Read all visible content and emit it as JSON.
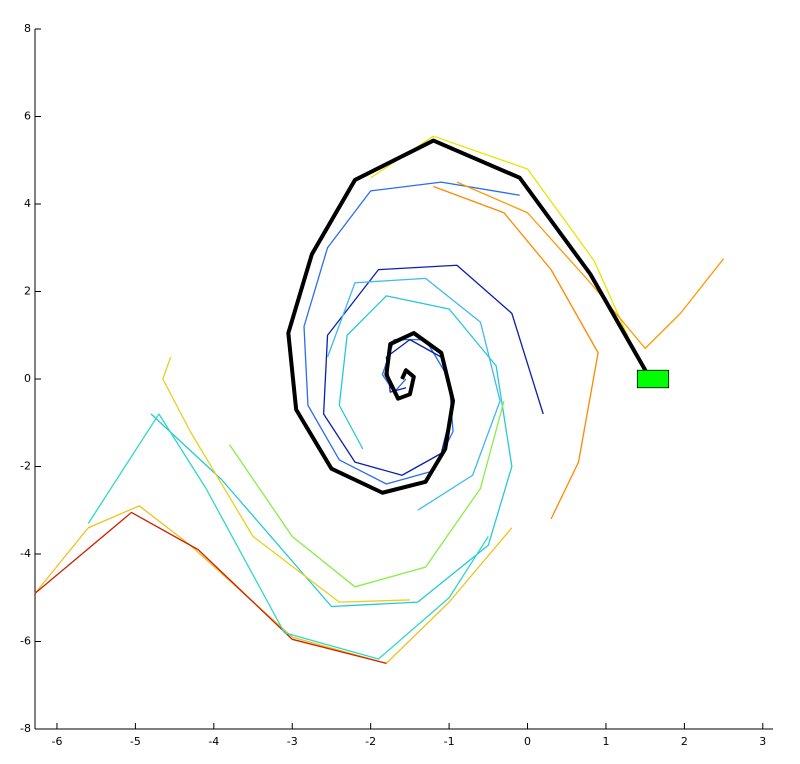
{
  "chart_data": {
    "type": "line",
    "xlim": [
      -6.28,
      3.13
    ],
    "ylim": [
      -8,
      8
    ],
    "xticks": [
      -6,
      -5,
      -4,
      -3,
      -2,
      -1,
      0,
      1,
      2,
      3
    ],
    "yticks": [
      -8,
      -6,
      -4,
      -2,
      0,
      2,
      4,
      6,
      8
    ],
    "target": {
      "x": [
        1.4,
        1.8
      ],
      "y": [
        -0.2,
        0.2
      ],
      "color": "#00ff00"
    },
    "series": [
      {
        "color": "#e6e600",
        "width": 1.3,
        "x": [
          1.5,
          0.85,
          0.0,
          -1.2,
          -2.0
        ],
        "values": [
          0.1,
          2.7,
          4.8,
          5.55,
          4.6
        ]
      },
      {
        "color": "#2a6cf0",
        "width": 1.3,
        "x": [
          -0.1,
          -1.1,
          -2.0,
          -2.55,
          -2.85,
          -2.8,
          -2.4,
          -1.8,
          -1.2,
          -0.95,
          -1.0,
          -1.3,
          -1.7,
          -1.85,
          -1.7,
          -1.55
        ],
        "values": [
          4.2,
          4.5,
          4.3,
          3.0,
          1.2,
          -0.6,
          -1.85,
          -2.4,
          -2.1,
          -1.2,
          0.0,
          0.9,
          0.9,
          0.1,
          -0.3,
          0.0
        ]
      },
      {
        "color": "#0a1fb0",
        "width": 1.3,
        "x": [
          0.2,
          -0.2,
          -0.9,
          -1.9,
          -2.55,
          -2.6,
          -2.2,
          -1.6,
          -1.1,
          -0.95,
          -1.1,
          -1.5,
          -1.8,
          -1.75,
          -1.55
        ],
        "values": [
          -0.8,
          1.5,
          2.6,
          2.5,
          1.0,
          -0.8,
          -1.9,
          -2.2,
          -1.7,
          -0.6,
          0.5,
          0.9,
          0.5,
          -0.3,
          -0.2
        ]
      },
      {
        "color": "#26c8d8",
        "width": 1.3,
        "x": [
          -4.8,
          -3.9,
          -2.5,
          -1.4,
          -0.5,
          -0.2,
          -0.4,
          -1.0,
          -1.8,
          -2.3,
          -2.4,
          -2.1
        ],
        "values": [
          -0.8,
          -2.3,
          -5.2,
          -5.1,
          -3.8,
          -2.0,
          0.3,
          1.6,
          1.9,
          1.0,
          -0.6,
          -1.6
        ]
      },
      {
        "color": "#f0c020",
        "width": 1.3,
        "x": [
          -6.28,
          -5.6,
          -4.95,
          -4.3,
          -3.0,
          -1.8,
          -1.0,
          -0.2
        ],
        "values": [
          -4.9,
          -3.4,
          -2.9,
          -3.8,
          -5.9,
          -6.5,
          -5.1,
          -3.4
        ]
      },
      {
        "color": "#e8d020",
        "width": 1.3,
        "x": [
          -4.55,
          -4.65,
          -4.3,
          -3.5,
          -2.4,
          -1.5
        ],
        "values": [
          0.5,
          0.0,
          -1.2,
          -3.6,
          -5.1,
          -5.05
        ]
      },
      {
        "color": "#cc2200",
        "width": 1.3,
        "x": [
          -6.28,
          -5.05,
          -4.2,
          -3.0,
          -1.8
        ],
        "values": [
          -4.9,
          -3.05,
          -3.9,
          -5.95,
          -6.5
        ]
      },
      {
        "color": "#ff9900",
        "width": 1.3,
        "x": [
          2.5,
          1.95,
          1.5,
          0.8,
          0.0,
          -0.9
        ],
        "values": [
          2.75,
          1.5,
          0.7,
          2.2,
          3.8,
          4.5
        ]
      },
      {
        "color": "#88ee44",
        "width": 1.3,
        "x": [
          -3.8,
          -3.0,
          -2.2,
          -1.3,
          -0.6,
          -0.3
        ],
        "values": [
          -1.5,
          -3.6,
          -4.75,
          -4.3,
          -2.5,
          -0.5
        ]
      },
      {
        "color": "#40b8f0",
        "width": 1.3,
        "x": [
          -1.4,
          -0.7,
          -0.35,
          -0.6,
          -1.3,
          -2.2,
          -2.55
        ],
        "values": [
          -3.0,
          -2.2,
          -0.5,
          1.3,
          2.3,
          2.2,
          0.5
        ]
      },
      {
        "color": "#ff8800",
        "width": 1.3,
        "x": [
          0.3,
          0.65,
          0.9,
          0.3,
          -0.3,
          -1.2
        ],
        "values": [
          -3.2,
          -1.9,
          0.6,
          2.5,
          3.8,
          4.4
        ]
      },
      {
        "color": "#30d8c8",
        "width": 1.3,
        "x": [
          -5.6,
          -4.7,
          -4.1,
          -3.1,
          -1.9,
          -1.0,
          -0.5
        ],
        "values": [
          -3.3,
          -0.8,
          -2.5,
          -5.8,
          -6.4,
          -5.0,
          -3.6
        ]
      },
      {
        "color": "#000000",
        "width": 4,
        "x": [
          1.55,
          0.8,
          -0.1,
          -1.2,
          -2.2,
          -2.75,
          -3.05,
          -2.95,
          -2.5,
          -1.85,
          -1.3,
          -1.05,
          -0.95,
          -1.1,
          -1.45,
          -1.75,
          -1.8,
          -1.65,
          -1.5,
          -1.45,
          -1.55,
          -1.6
        ],
        "values": [
          0.05,
          2.4,
          4.6,
          5.45,
          4.55,
          2.85,
          1.05,
          -0.7,
          -2.05,
          -2.6,
          -2.35,
          -1.6,
          -0.5,
          0.6,
          1.05,
          0.8,
          0.1,
          -0.45,
          -0.35,
          0.05,
          0.2,
          0.0
        ]
      }
    ]
  }
}
